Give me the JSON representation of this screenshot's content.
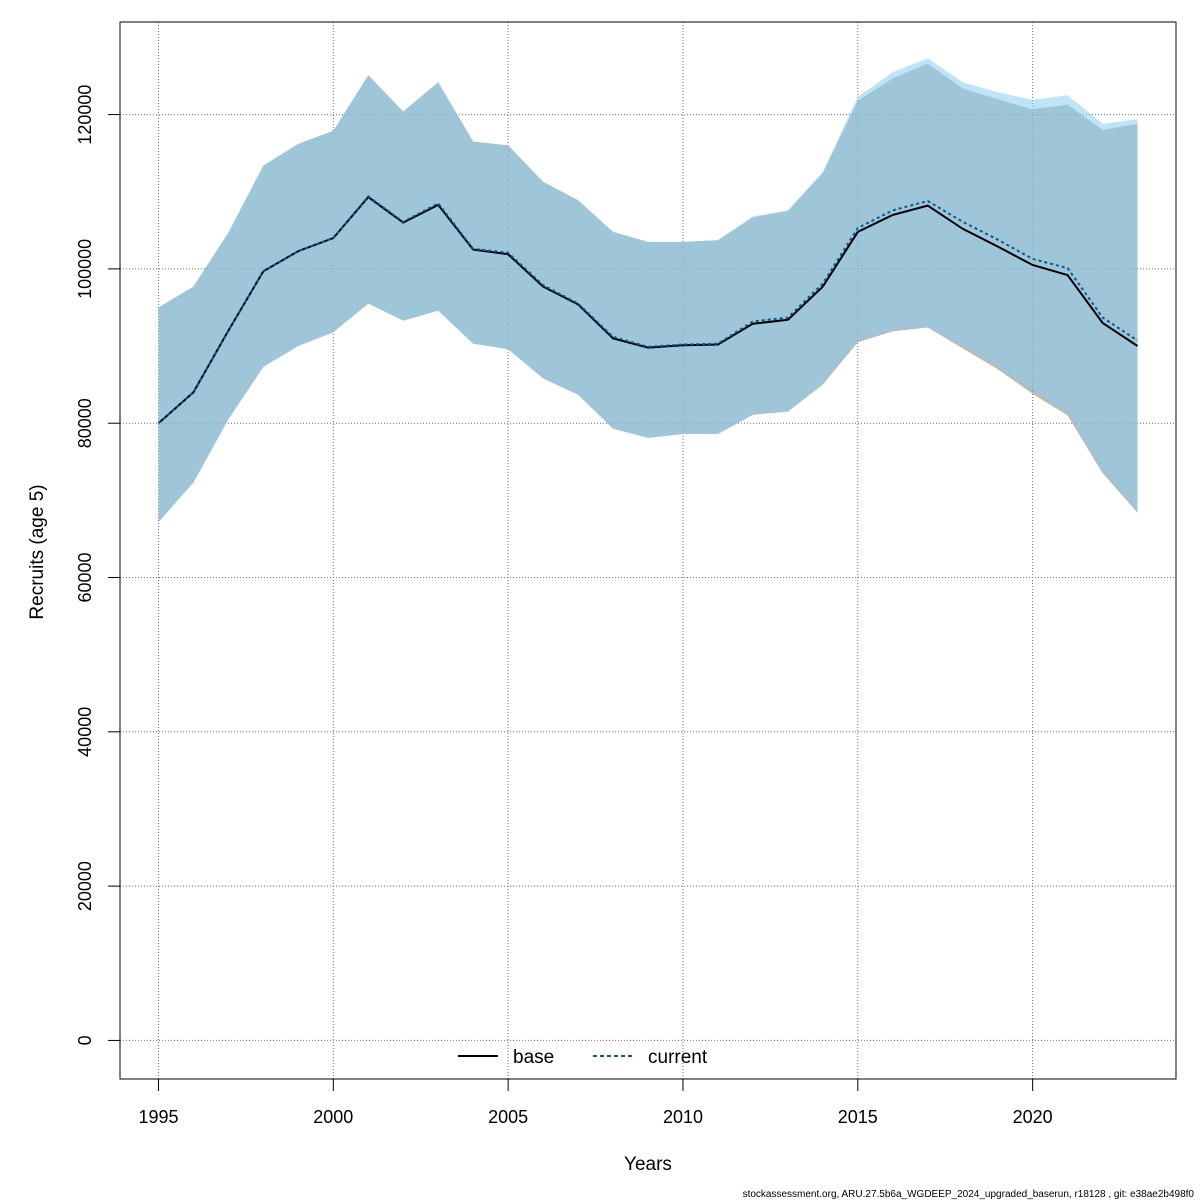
{
  "chart_data": {
    "type": "line",
    "xlabel": "Years",
    "ylabel": "Recruits (age 5)",
    "xlim": [
      1993.9,
      2024.1
    ],
    "ylim": [
      -5000,
      132000
    ],
    "x_ticks": [
      1995,
      2000,
      2005,
      2010,
      2015,
      2020
    ],
    "y_ticks": [
      0,
      20000,
      40000,
      60000,
      80000,
      100000,
      120000
    ],
    "grid": true,
    "legend_position": "bottom-center",
    "x": [
      1995,
      1996,
      1997,
      1998,
      1999,
      2000,
      2001,
      2002,
      2003,
      2004,
      2005,
      2006,
      2007,
      2008,
      2009,
      2010,
      2011,
      2012,
      2013,
      2014,
      2015,
      2016,
      2017,
      2018,
      2019,
      2020,
      2021,
      2022,
      2023
    ],
    "series": [
      {
        "name": "base",
        "line_style": "solid",
        "color": "#000000",
        "band_color": "#8c8c8c",
        "values": [
          80000,
          84000,
          92000,
          99700,
          102300,
          104000,
          109300,
          106000,
          108300,
          102500,
          101900,
          97700,
          95400,
          91000,
          89800,
          90100,
          90200,
          92900,
          93400,
          97700,
          104800,
          107000,
          108200,
          105200,
          102900,
          100500,
          99200,
          93000,
          90000
        ],
        "lower": [
          67200,
          72300,
          80500,
          87300,
          90000,
          91800,
          95500,
          93300,
          94600,
          90300,
          89600,
          85800,
          83700,
          79300,
          78100,
          78600,
          78600,
          81100,
          81500,
          85000,
          90500,
          91900,
          92400,
          89700,
          87000,
          83800,
          81000,
          73500,
          68400
        ],
        "upper": [
          95000,
          97700,
          104700,
          113400,
          116200,
          117900,
          125100,
          120400,
          124200,
          116500,
          116000,
          111300,
          108900,
          104800,
          103500,
          103500,
          103700,
          106700,
          107500,
          112400,
          121800,
          124700,
          126600,
          123400,
          122000,
          120700,
          121300,
          118000,
          118800
        ]
      },
      {
        "name": "current",
        "line_style": "dashed",
        "color": "#0a5a8c",
        "band_color": "#87cef0",
        "values": [
          80000,
          84000,
          92000,
          99700,
          102300,
          104000,
          109400,
          106100,
          108500,
          102600,
          102100,
          97900,
          95500,
          91200,
          89900,
          90200,
          90300,
          93200,
          93700,
          98100,
          105300,
          107600,
          108800,
          106100,
          103800,
          101300,
          100100,
          93700,
          90700
        ],
        "lower": [
          67200,
          72300,
          80500,
          87300,
          90000,
          91800,
          95500,
          93300,
          94600,
          90300,
          89600,
          85800,
          83700,
          79300,
          78100,
          78600,
          78600,
          81100,
          81500,
          85100,
          90700,
          92100,
          92500,
          90100,
          87400,
          84300,
          81400,
          73900,
          68700
        ],
        "upper": [
          95000,
          97700,
          104700,
          113400,
          116200,
          117900,
          125100,
          120400,
          124200,
          116500,
          116000,
          111300,
          108900,
          104800,
          103500,
          103500,
          103700,
          106800,
          107600,
          112600,
          122300,
          125500,
          127300,
          124200,
          122900,
          121900,
          122500,
          118800,
          119400
        ]
      }
    ],
    "legend": [
      {
        "label": "base",
        "line_style": "solid"
      },
      {
        "label": "current",
        "line_style": "dashed"
      }
    ]
  },
  "footer": "stockassessment.org, ARU.27.5b6a_WGDEEP_2024_upgraded_baserun, r18128 , git: e38ae2b498f0",
  "colors": {
    "grid": "#6e6e6e",
    "axis": "#000000",
    "base_band": "#8c8c8c",
    "current_band": "#87cef0"
  }
}
